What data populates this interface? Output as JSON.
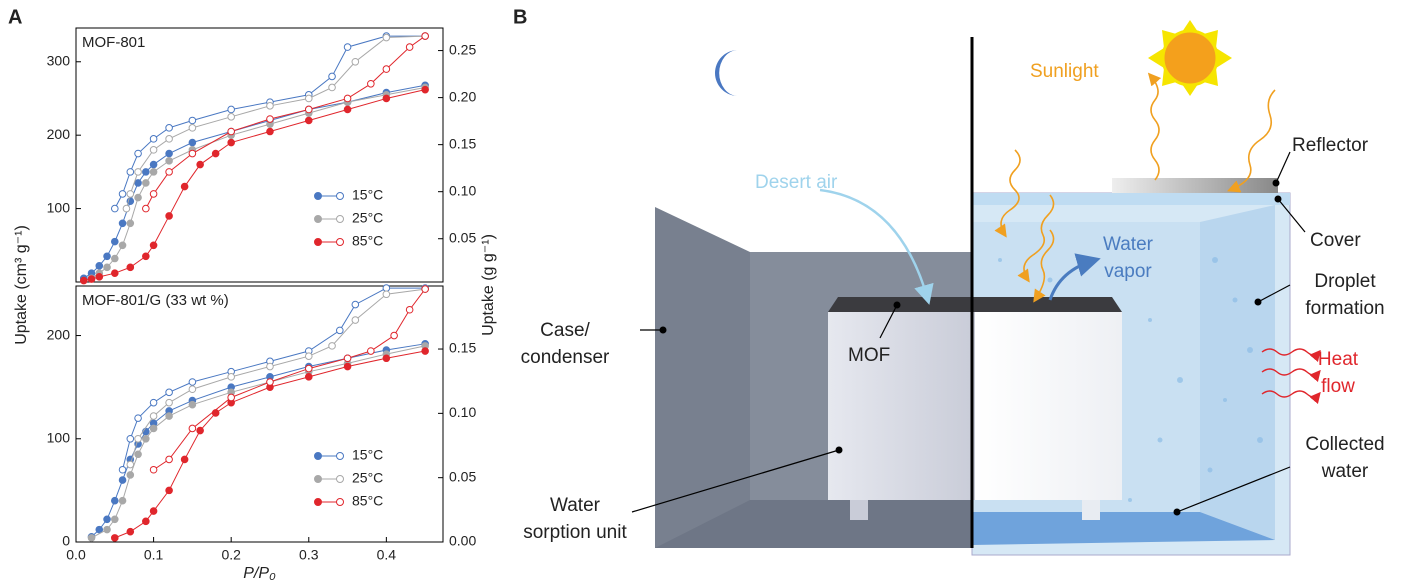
{
  "figure": {
    "panels": [
      "A",
      "B"
    ],
    "ylabel": "Uptake (cm³ g⁻¹)",
    "y2label": "Uptake (g g⁻¹)"
  },
  "chart_data": [
    {
      "type": "scatter",
      "title": "MOF-801",
      "legend": "lower right",
      "xlim": [
        0,
        0.473
      ],
      "ylim": [
        0,
        346
      ],
      "yticks": [
        100,
        200,
        300
      ],
      "y2lim": [
        0.004,
        0.274
      ],
      "y2ticks": [
        {
          "value": 0.05,
          "label": "0.05"
        },
        {
          "value": 0.1,
          "label": "0.10"
        },
        {
          "value": 0.15,
          "label": "0.15"
        },
        {
          "value": 0.2,
          "label": "0.20"
        },
        {
          "value": 0.25,
          "label": "0.25"
        }
      ],
      "series": [
        {
          "name": "15°C",
          "color": "#4a78c2",
          "x": [
            0.01,
            0.02,
            0.03,
            0.04,
            0.05,
            0.06,
            0.07,
            0.08,
            0.09,
            0.1,
            0.12,
            0.15,
            0.2,
            0.25,
            0.3,
            0.35,
            0.4,
            0.45
          ],
          "values": [
            5,
            12,
            22,
            35,
            55,
            80,
            110,
            135,
            150,
            160,
            175,
            190,
            205,
            220,
            235,
            245,
            258,
            268
          ],
          "x_desorption": [
            0.45,
            0.4,
            0.35,
            0.33,
            0.3,
            0.25,
            0.2,
            0.15,
            0.12,
            0.1,
            0.08,
            0.07,
            0.06,
            0.05
          ],
          "values_desorption": [
            335,
            335,
            320,
            280,
            255,
            245,
            235,
            220,
            210,
            195,
            175,
            150,
            120,
            100
          ]
        },
        {
          "name": "25°C",
          "color": "#a8a8a8",
          "x": [
            0.02,
            0.03,
            0.04,
            0.05,
            0.06,
            0.07,
            0.08,
            0.09,
            0.1,
            0.12,
            0.15,
            0.2,
            0.25,
            0.3,
            0.35,
            0.4,
            0.45
          ],
          "values": [
            5,
            12,
            20,
            32,
            50,
            80,
            115,
            135,
            150,
            165,
            180,
            200,
            215,
            230,
            245,
            255,
            265
          ],
          "x_desorption": [
            0.45,
            0.4,
            0.36,
            0.33,
            0.3,
            0.25,
            0.2,
            0.15,
            0.12,
            0.1,
            0.08,
            0.07,
            0.065
          ],
          "values_desorption": [
            335,
            333,
            300,
            265,
            250,
            240,
            225,
            210,
            195,
            180,
            150,
            120,
            100
          ]
        },
        {
          "name": "85°C",
          "color": "#e0262c",
          "x": [
            0.01,
            0.02,
            0.03,
            0.05,
            0.07,
            0.09,
            0.1,
            0.12,
            0.14,
            0.16,
            0.18,
            0.2,
            0.25,
            0.3,
            0.35,
            0.4,
            0.45
          ],
          "values": [
            2,
            4,
            7,
            12,
            20,
            35,
            50,
            90,
            130,
            160,
            175,
            190,
            205,
            220,
            235,
            250,
            262
          ],
          "x_desorption": [
            0.45,
            0.43,
            0.4,
            0.38,
            0.35,
            0.3,
            0.25,
            0.2,
            0.15,
            0.12,
            0.1,
            0.09
          ],
          "values_desorption": [
            335,
            320,
            290,
            270,
            250,
            235,
            222,
            205,
            175,
            150,
            120,
            100
          ]
        }
      ]
    },
    {
      "type": "scatter",
      "title": "MOF-801/G (33 wt %)",
      "legend": "lower right",
      "xlabel": "P/P₀",
      "xlim": [
        0,
        0.473
      ],
      "xticks": [
        {
          "value": 0,
          "label": "0.0"
        },
        0.1,
        0.2,
        0.3,
        0.4
      ],
      "ylim": [
        0,
        248
      ],
      "yticks": [
        0,
        100,
        200
      ],
      "y2lim": [
        0,
        0.199
      ],
      "y2ticks": [
        {
          "value": 0,
          "label": "0.00"
        },
        {
          "value": 0.05,
          "label": "0.05"
        },
        {
          "value": 0.1,
          "label": "0.10"
        },
        {
          "value": 0.15,
          "label": "0.15"
        }
      ],
      "series": [
        {
          "name": "15°C",
          "color": "#4a78c2",
          "x": [
            0.02,
            0.03,
            0.04,
            0.05,
            0.06,
            0.07,
            0.08,
            0.09,
            0.1,
            0.12,
            0.15,
            0.2,
            0.25,
            0.3,
            0.35,
            0.4,
            0.45
          ],
          "values": [
            5,
            12,
            22,
            40,
            60,
            80,
            95,
            107,
            115,
            127,
            137,
            150,
            160,
            170,
            178,
            186,
            192
          ],
          "x_desorption": [
            0.45,
            0.4,
            0.36,
            0.34,
            0.3,
            0.25,
            0.2,
            0.15,
            0.12,
            0.1,
            0.08,
            0.07,
            0.06
          ],
          "values_desorption": [
            246,
            246,
            230,
            205,
            185,
            175,
            165,
            155,
            145,
            135,
            120,
            100,
            70
          ]
        },
        {
          "name": "25°C",
          "color": "#a8a8a8",
          "x": [
            0.02,
            0.04,
            0.05,
            0.06,
            0.07,
            0.08,
            0.09,
            0.1,
            0.12,
            0.15,
            0.2,
            0.25,
            0.3,
            0.35,
            0.4,
            0.45
          ],
          "values": [
            4,
            12,
            22,
            40,
            65,
            85,
            100,
            110,
            122,
            133,
            145,
            155,
            165,
            173,
            182,
            190
          ],
          "x_desorption": [
            0.45,
            0.4,
            0.36,
            0.33,
            0.3,
            0.25,
            0.2,
            0.15,
            0.12,
            0.1,
            0.08,
            0.07
          ],
          "values_desorption": [
            245,
            240,
            215,
            190,
            180,
            170,
            160,
            148,
            135,
            122,
            100,
            75
          ]
        },
        {
          "name": "85°C",
          "color": "#e0262c",
          "x": [
            0.05,
            0.07,
            0.09,
            0.1,
            0.12,
            0.14,
            0.16,
            0.18,
            0.2,
            0.25,
            0.3,
            0.35,
            0.4,
            0.45
          ],
          "values": [
            4,
            10,
            20,
            30,
            50,
            80,
            108,
            125,
            135,
            150,
            160,
            170,
            178,
            185
          ],
          "x_desorption": [
            0.45,
            0.43,
            0.41,
            0.38,
            0.35,
            0.3,
            0.25,
            0.2,
            0.15,
            0.12,
            0.1
          ],
          "values_desorption": [
            245,
            225,
            200,
            185,
            178,
            168,
            155,
            140,
            110,
            80,
            70
          ]
        }
      ]
    }
  ],
  "diagram": {
    "callouts": [
      {
        "lines": [
          "Desert air"
        ]
      },
      {
        "lines": [
          "Sunlight"
        ]
      },
      {
        "lines": [
          "Reflector"
        ]
      },
      {
        "lines": [
          "Cover"
        ]
      },
      {
        "lines": [
          "Water",
          "vapor"
        ]
      },
      {
        "lines": [
          "Droplet",
          "formation"
        ]
      },
      {
        "lines": [
          "Heat",
          "flow"
        ]
      },
      {
        "lines": [
          "Collected",
          "water"
        ]
      },
      {
        "lines": [
          "Case/",
          "condenser"
        ]
      },
      {
        "lines": [
          "MOF"
        ]
      },
      {
        "lines": [
          "Water",
          "sorption unit"
        ]
      }
    ]
  }
}
